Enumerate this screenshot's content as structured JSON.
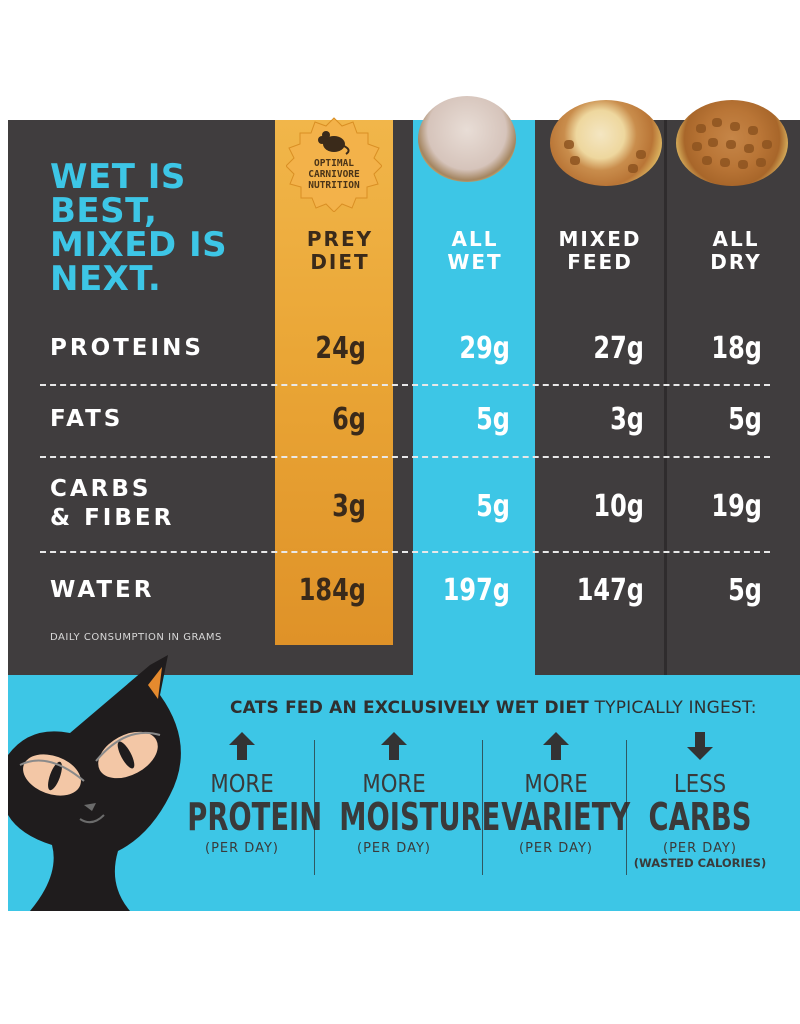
{
  "headline": "WET IS BEST, MIXED IS NEXT.",
  "badge": "OPTIMAL CARNIVORE NUTRITION",
  "columns": {
    "prey": "PREY\nDIET",
    "wet": "ALL\nWET",
    "mixed": "MIXED\nFEED",
    "dry": "ALL\nDRY"
  },
  "rows": [
    {
      "label": "PROTEINS",
      "prey": "24g",
      "wet": "29g",
      "mixed": "27g",
      "dry": "18g"
    },
    {
      "label": "FATS",
      "prey": "6g",
      "wet": "5g",
      "mixed": "3g",
      "dry": "5g"
    },
    {
      "label": "CARBS\n& FIBER",
      "prey": "3g",
      "wet": "5g",
      "mixed": "10g",
      "dry": "19g"
    },
    {
      "label": "WATER",
      "prey": "184g",
      "wet": "197g",
      "mixed": "147g",
      "dry": "5g"
    }
  ],
  "footnote": "DAILY CONSUMPTION IN GRAMS",
  "ingest": {
    "bold": "CATS FED AN EXCLUSIVELY WET DIET",
    "rest": " TYPICALLY INGEST:"
  },
  "benefits": [
    {
      "direction": "up",
      "small": "MORE",
      "big": "PROTEIN",
      "per": "(PER DAY)",
      "note": ""
    },
    {
      "direction": "up",
      "small": "MORE",
      "big": "MOISTURE",
      "per": "(PER DAY)",
      "note": ""
    },
    {
      "direction": "up",
      "small": "MORE",
      "big": "VARIETY",
      "per": "(PER DAY)",
      "note": ""
    },
    {
      "direction": "down",
      "small": "LESS",
      "big": "CARBS",
      "per": "(PER DAY)",
      "note": "(WASTED CALORIES)"
    }
  ],
  "icons": [
    "mouse-icon",
    "arrow-up-icon",
    "arrow-down-icon",
    "cat-illustration"
  ],
  "colors": {
    "dark": "#403d3e",
    "wet_blue": "#3dc6e6",
    "prey_gold": "#eaa636",
    "text_dark": "#3a3a3a"
  }
}
